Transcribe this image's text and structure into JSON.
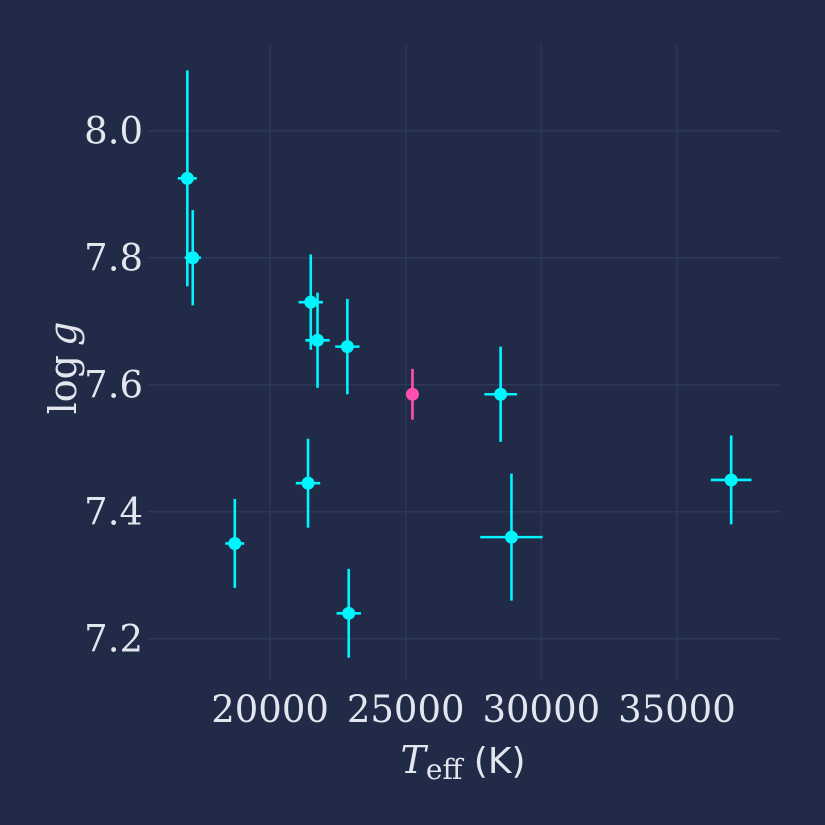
{
  "chart_data": {
    "type": "scatter",
    "title": "",
    "xlabel_main": "T",
    "xlabel_sub": "eff",
    "xlabel_unit": " (K)",
    "ylabel_main": "log",
    "ylabel_var": "g",
    "xlim": [
      15500,
      38800
    ],
    "ylim": [
      7.135,
      8.135
    ],
    "x_ticks": [
      20000,
      25000,
      30000,
      35000
    ],
    "y_ticks": [
      7.2,
      7.4,
      7.6,
      7.8,
      8.0
    ],
    "x_tick_labels": [
      "20000",
      "25000",
      "30000",
      "35000"
    ],
    "y_tick_labels": [
      "7.2",
      "7.4",
      "7.6",
      "7.8",
      "8.0"
    ],
    "grid": true,
    "colors": {
      "background": "#212a47",
      "grid": "#2c3858",
      "series_main": "#00f5ff",
      "series_highlight": "#ff4fb0",
      "text": "#e3e6ee"
    },
    "series": [
      {
        "color": "#00f5ff",
        "points": [
          {
            "x": 16950,
            "y": 7.925,
            "xerr": 350,
            "yerr": 0.17
          },
          {
            "x": 17150,
            "y": 7.8,
            "xerr": 300,
            "yerr": 0.075
          },
          {
            "x": 18700,
            "y": 7.35,
            "xerr": 350,
            "yerr": 0.07
          },
          {
            "x": 21400,
            "y": 7.445,
            "xerr": 450,
            "yerr": 0.07
          },
          {
            "x": 21500,
            "y": 7.73,
            "xerr": 450,
            "yerr": 0.075
          },
          {
            "x": 21750,
            "y": 7.67,
            "xerr": 450,
            "yerr": 0.075
          },
          {
            "x": 22850,
            "y": 7.66,
            "xerr": 450,
            "yerr": 0.075
          },
          {
            "x": 22900,
            "y": 7.24,
            "xerr": 450,
            "yerr": 0.07
          },
          {
            "x": 28500,
            "y": 7.585,
            "xerr": 600,
            "yerr": 0.075
          },
          {
            "x": 28900,
            "y": 7.36,
            "xerr": 1150,
            "yerr": 0.1
          },
          {
            "x": 37000,
            "y": 7.45,
            "xerr": 750,
            "yerr": 0.07
          }
        ]
      },
      {
        "color": "#ff4fb0",
        "points": [
          {
            "x": 25250,
            "y": 7.585,
            "xerr": 0,
            "yerr": 0.04
          }
        ]
      }
    ]
  }
}
